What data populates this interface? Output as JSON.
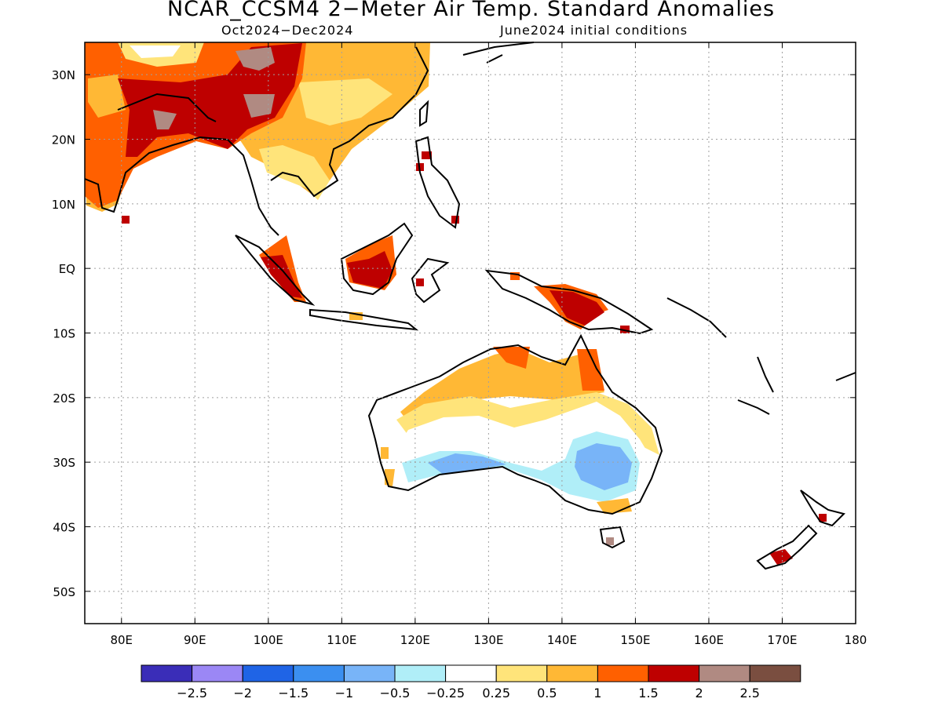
{
  "header": {
    "title": "NCAR_CCSM4 2−Meter Air Temp. Standard Anomalies",
    "period": "Oct2024−Dec2024",
    "initial_conditions": "June2024 initial conditions"
  },
  "map": {
    "lon_range": [
      75,
      180
    ],
    "lat_range": [
      -55,
      35
    ],
    "lat_ticks": [
      {
        "value": 30,
        "label": "30N"
      },
      {
        "value": 20,
        "label": "20N"
      },
      {
        "value": 10,
        "label": "10N"
      },
      {
        "value": 0,
        "label": "EQ"
      },
      {
        "value": -10,
        "label": "10S"
      },
      {
        "value": -20,
        "label": "20S"
      },
      {
        "value": -30,
        "label": "30S"
      },
      {
        "value": -40,
        "label": "40S"
      },
      {
        "value": -50,
        "label": "50S"
      }
    ],
    "lon_ticks": [
      {
        "value": 80,
        "label": "80E"
      },
      {
        "value": 90,
        "label": "90E"
      },
      {
        "value": 100,
        "label": "100E"
      },
      {
        "value": 110,
        "label": "110E"
      },
      {
        "value": 120,
        "label": "120E"
      },
      {
        "value": 130,
        "label": "130E"
      },
      {
        "value": 140,
        "label": "140E"
      },
      {
        "value": 150,
        "label": "150E"
      },
      {
        "value": 160,
        "label": "160E"
      },
      {
        "value": 170,
        "label": "170E"
      },
      {
        "value": 180,
        "label": "180"
      }
    ],
    "grid": true
  },
  "colorbar": {
    "colors": [
      "#3a2db8",
      "#9b87f5",
      "#1f64e6",
      "#3b8ff0",
      "#78b4f8",
      "#b0eef8",
      "#ffffff",
      "#ffe47a",
      "#ffb835",
      "#ff6000",
      "#be0000",
      "#b08a82",
      "#7a4e40"
    ],
    "labels": [
      "−2.5",
      "−2",
      "−1.5",
      "−1",
      "−0.5",
      "−0.25",
      "0.25",
      "0.5",
      "1",
      "1.5",
      "2",
      "2.5"
    ]
  }
}
